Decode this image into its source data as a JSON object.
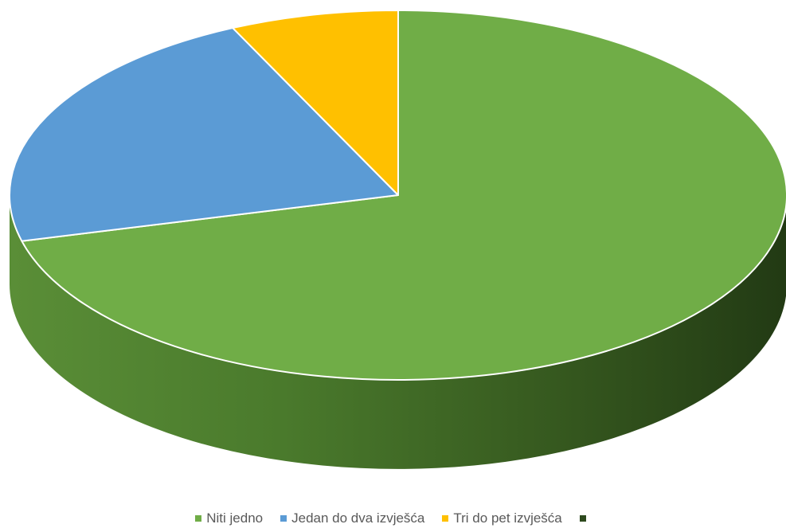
{
  "chart_data": {
    "type": "pie",
    "style": "3d",
    "title": "",
    "categories": [
      "Niti jedno",
      "Jedan do dva izvješća",
      "Tri do pet izvješća",
      ""
    ],
    "values": [
      71,
      22,
      7,
      0
    ],
    "colors": [
      "#70AD47",
      "#5B9BD5",
      "#FFC000",
      "#264478"
    ],
    "legend": {
      "position": "bottom",
      "items": [
        {
          "label": "Niti jedno",
          "color": "#70AD47"
        },
        {
          "label": "Jedan do dva izvješća",
          "color": "#5B9BD5"
        },
        {
          "label": "Tri do pet izvješća",
          "color": "#FFC000"
        },
        {
          "label": "",
          "color": "#2E4A1E"
        }
      ]
    }
  }
}
